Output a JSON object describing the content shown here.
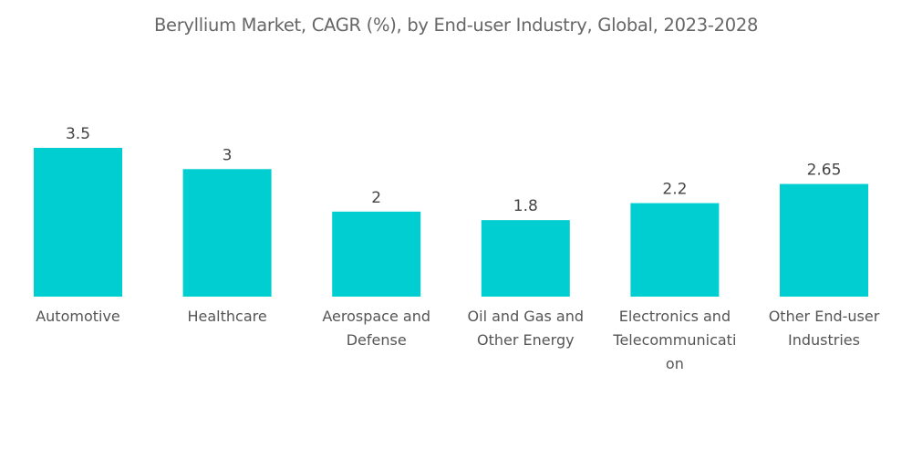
{
  "chart_data": {
    "type": "bar",
    "title": "Beryllium Market, CAGR (%), by End-user Industry, Global, 2023-2028",
    "xlabel": "",
    "ylabel": "",
    "ylim": [
      0,
      3.5
    ],
    "grid": false,
    "legend": "none",
    "bar_color": "#00CED1",
    "categories": [
      "Automotive",
      "Healthcare",
      "Aerospace and Defense",
      "Oil and Gas and Other Energy",
      "Electronics and Telecommunication",
      "Other End-user Industries"
    ],
    "category_label_lines": [
      [
        "Automotive"
      ],
      [
        "Healthcare"
      ],
      [
        "Aerospace and",
        "Defense"
      ],
      [
        "Oil and Gas and",
        "Other Energy"
      ],
      [
        "Electronics and",
        "Telecommunicati",
        "on"
      ],
      [
        "Other End-user",
        "Industries"
      ]
    ],
    "values": [
      3.5,
      3,
      2,
      1.8,
      2.2,
      2.65
    ],
    "value_labels": [
      "3.5",
      "3",
      "2",
      "1.8",
      "2.2",
      "2.65"
    ]
  }
}
